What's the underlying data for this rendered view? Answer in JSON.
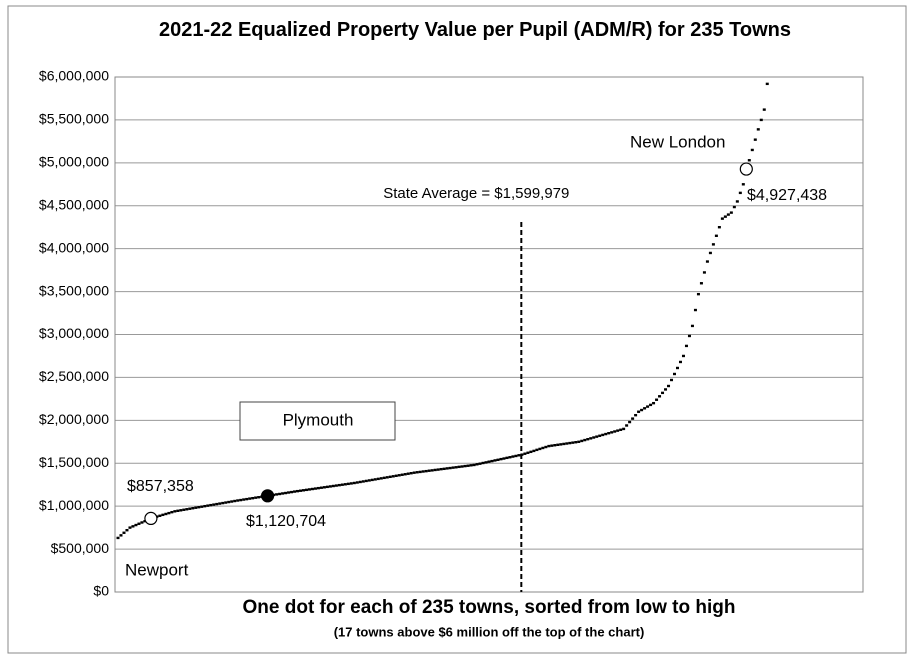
{
  "chart_data": {
    "type": "scatter",
    "title": "2021-22 Equalized Property Value per Pupil (ADM/R) for 235 Towns",
    "x_label": "One dot for each of 235 towns, sorted from low to high",
    "x_note": "(17 towns above $6 million off the top of the chart)",
    "color": "#000000",
    "xlim": [
      0,
      250
    ],
    "ylim": [
      0,
      6000000
    ],
    "yticks": [
      {
        "value": 0,
        "label": "$0"
      },
      {
        "value": 500000,
        "label": "$500,000"
      },
      {
        "value": 1000000,
        "label": "$1,000,000"
      },
      {
        "value": 1500000,
        "label": "$1,500,000"
      },
      {
        "value": 2000000,
        "label": "$2,000,000"
      },
      {
        "value": 2500000,
        "label": "$2,500,000"
      },
      {
        "value": 3000000,
        "label": "$3,000,000"
      },
      {
        "value": 3500000,
        "label": "$3,500,000"
      },
      {
        "value": 4000000,
        "label": "$4,000,000"
      },
      {
        "value": 4500000,
        "label": "$4,500,000"
      },
      {
        "value": 5000000,
        "label": "$5,000,000"
      },
      {
        "value": 5500000,
        "label": "$5,500,000"
      },
      {
        "value": 6000000,
        "label": "$6,000,000"
      }
    ],
    "grid": true,
    "x": [
      1,
      2,
      3,
      4,
      5,
      6,
      7,
      8,
      9,
      10,
      11,
      12,
      13,
      14,
      15,
      16,
      17,
      18,
      19,
      20,
      21,
      22,
      23,
      24,
      25,
      26,
      27,
      28,
      29,
      30,
      31,
      32,
      33,
      34,
      35,
      36,
      37,
      38,
      39,
      40,
      41,
      42,
      43,
      44,
      45,
      46,
      47,
      48,
      49,
      50,
      51,
      52,
      53,
      54,
      55,
      56,
      57,
      58,
      59,
      60,
      61,
      62,
      63,
      64,
      65,
      66,
      67,
      68,
      69,
      70,
      71,
      72,
      73,
      74,
      75,
      76,
      77,
      78,
      79,
      80,
      81,
      82,
      83,
      84,
      85,
      86,
      87,
      88,
      89,
      90,
      91,
      92,
      93,
      94,
      95,
      96,
      97,
      98,
      99,
      100,
      101,
      102,
      103,
      104,
      105,
      106,
      107,
      108,
      109,
      110,
      111,
      112,
      113,
      114,
      115,
      116,
      117,
      118,
      119,
      120,
      121,
      122,
      123,
      124,
      125,
      126,
      127,
      128,
      129,
      130,
      131,
      132,
      133,
      134,
      135,
      136,
      137,
      138,
      139,
      140,
      141,
      142,
      143,
      144,
      145,
      146,
      147,
      148,
      149,
      150,
      151,
      152,
      153,
      154,
      155,
      156,
      157,
      158,
      159,
      160,
      161,
      162,
      163,
      164,
      165,
      166,
      167,
      168,
      169,
      170,
      171,
      172,
      173,
      174,
      175,
      176,
      177,
      178,
      179,
      180,
      181,
      182,
      183,
      184,
      185,
      186,
      187,
      188,
      189,
      190,
      191,
      192,
      193,
      194,
      195,
      196,
      197,
      198,
      199,
      200,
      201,
      202,
      203,
      204,
      205,
      206,
      207,
      208,
      209,
      210,
      211,
      212,
      213,
      214,
      215,
      216,
      217,
      218
    ],
    "values": [
      630000,
      660000,
      690000,
      720000,
      750000,
      765000,
      780000,
      795000,
      810000,
      825000,
      840000,
      857358,
      868000,
      878000,
      888000,
      899000,
      909000,
      919000,
      930000,
      940000,
      946000,
      952000,
      958000,
      964000,
      970000,
      976000,
      982000,
      988000,
      994000,
      1000000,
      1006000,
      1012000,
      1018000,
      1024000,
      1030000,
      1036000,
      1042000,
      1048000,
      1054000,
      1060000,
      1066000,
      1071000,
      1077000,
      1082000,
      1088000,
      1093000,
      1099000,
      1104000,
      1110000,
      1115000,
      1120704,
      1126000,
      1131000,
      1137000,
      1142000,
      1148000,
      1153000,
      1159000,
      1164000,
      1170000,
      1175000,
      1180000,
      1185000,
      1190000,
      1195000,
      1200000,
      1205000,
      1210000,
      1215000,
      1220000,
      1225000,
      1230000,
      1235000,
      1240000,
      1245000,
      1250000,
      1255000,
      1260000,
      1265000,
      1270000,
      1276000,
      1282000,
      1288000,
      1294000,
      1300000,
      1306000,
      1312000,
      1318000,
      1324000,
      1330000,
      1336000,
      1342000,
      1348000,
      1354000,
      1360000,
      1366000,
      1372000,
      1378000,
      1384000,
      1390000,
      1395000,
      1399000,
      1404000,
      1408000,
      1413000,
      1417000,
      1422000,
      1426000,
      1431000,
      1435000,
      1440000,
      1444000,
      1449000,
      1453000,
      1458000,
      1462000,
      1467000,
      1471000,
      1476000,
      1480000,
      1488000,
      1495000,
      1503000,
      1510000,
      1518000,
      1525000,
      1533000,
      1540000,
      1548000,
      1555000,
      1563000,
      1570000,
      1578000,
      1585000,
      1593000,
      1600000,
      1611000,
      1622000,
      1633000,
      1644000,
      1656000,
      1667000,
      1678000,
      1689000,
      1700000,
      1705000,
      1710000,
      1715000,
      1720000,
      1725000,
      1730000,
      1735000,
      1740000,
      1745000,
      1750000,
      1760000,
      1770000,
      1780000,
      1790000,
      1800000,
      1810000,
      1820000,
      1830000,
      1840000,
      1850000,
      1860000,
      1870000,
      1880000,
      1890000,
      1900000,
      1940000,
      1980000,
      2020000,
      2060000,
      2100000,
      2120000,
      2140000,
      2160000,
      2180000,
      2200000,
      2240000,
      2280000,
      2320000,
      2360000,
      2400000,
      2470000,
      2540000,
      2610000,
      2680000,
      2750000,
      2867000,
      2983000,
      3100000,
      3285000,
      3470000,
      3597000,
      3723000,
      3850000,
      3950000,
      4050000,
      4150000,
      4250000,
      4350000,
      4373000,
      4397000,
      4420000,
      4485000,
      4550000,
      4650000,
      4750000,
      4927438,
      5030000,
      5150000,
      5270000,
      5390000,
      5500000,
      5620000,
      5920000
    ],
    "labels": [
      {
        "name": "Newport",
        "x": 12,
        "value_label": "$857,358",
        "marker": "open"
      },
      {
        "name": "Plymouth",
        "x": 51,
        "value_label": "$1,120,704",
        "marker": "filled"
      },
      {
        "name": "New London",
        "x": 211,
        "value_label": "$4,927,438",
        "marker": "open"
      }
    ],
    "reference_line": {
      "text": "State Average = $1,599,979",
      "x": 135.8
    }
  }
}
